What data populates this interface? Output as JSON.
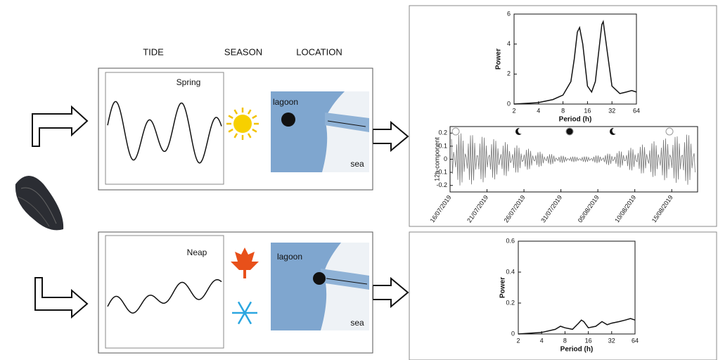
{
  "headers": {
    "tide": "TIDE",
    "season": "SEASON",
    "location": "LOCATION"
  },
  "panels": [
    {
      "tide": "Spring",
      "lagoon": "lagoon",
      "sea": "sea"
    },
    {
      "tide": "Neap",
      "lagoon": "lagoon",
      "sea": "sea"
    }
  ],
  "charts": [
    {
      "type": "line",
      "ylabel": "Power",
      "xlabel": "Period (h)",
      "log_x": true,
      "x": [
        2,
        4,
        6,
        8,
        10,
        11,
        12,
        12.8,
        14,
        16,
        18,
        20,
        22,
        24,
        25,
        28,
        32,
        40,
        48,
        56,
        64
      ],
      "values": [
        0,
        0.1,
        0.3,
        0.6,
        1.5,
        3,
        4.8,
        5.1,
        4,
        1.2,
        0.8,
        1.5,
        3.5,
        5.3,
        5.5,
        3.5,
        1.2,
        0.7,
        0.8,
        0.9,
        0.8
      ],
      "xlim": [
        2,
        64
      ],
      "ylim": [
        0,
        6
      ],
      "xticks": [
        2,
        4,
        8,
        16,
        32,
        64
      ],
      "yticks": [
        0,
        2,
        4,
        6
      ],
      "color": "#111111"
    },
    {
      "type": "signal",
      "ylabel": "12h-component",
      "categories": [
        "16/07/2019",
        "21/07/2019",
        "26/07/2019",
        "31/07/2019",
        "05/08/2019",
        "10/08/2019",
        "15/08/2019"
      ],
      "ylim": [
        -0.25,
        0.25
      ],
      "yticks": [
        0.2,
        0.1,
        0,
        -0.1,
        -0.2
      ],
      "color": "#777777"
    },
    {
      "type": "line",
      "ylabel": "Power",
      "xlabel": "Period (h)",
      "log_x": true,
      "x": [
        2,
        4,
        6,
        7,
        8,
        10,
        12,
        13,
        14,
        16,
        20,
        24,
        28,
        32,
        40,
        48,
        56,
        64
      ],
      "values": [
        0,
        0.01,
        0.03,
        0.05,
        0.04,
        0.03,
        0.07,
        0.09,
        0.08,
        0.04,
        0.05,
        0.08,
        0.06,
        0.07,
        0.08,
        0.09,
        0.1,
        0.09
      ],
      "xlim": [
        2,
        64
      ],
      "ylim": [
        0,
        0.6
      ],
      "xticks": [
        2,
        4,
        8,
        16,
        32,
        64
      ],
      "yticks": [
        0,
        0.2,
        0.4,
        0.6
      ],
      "color": "#111111"
    }
  ]
}
